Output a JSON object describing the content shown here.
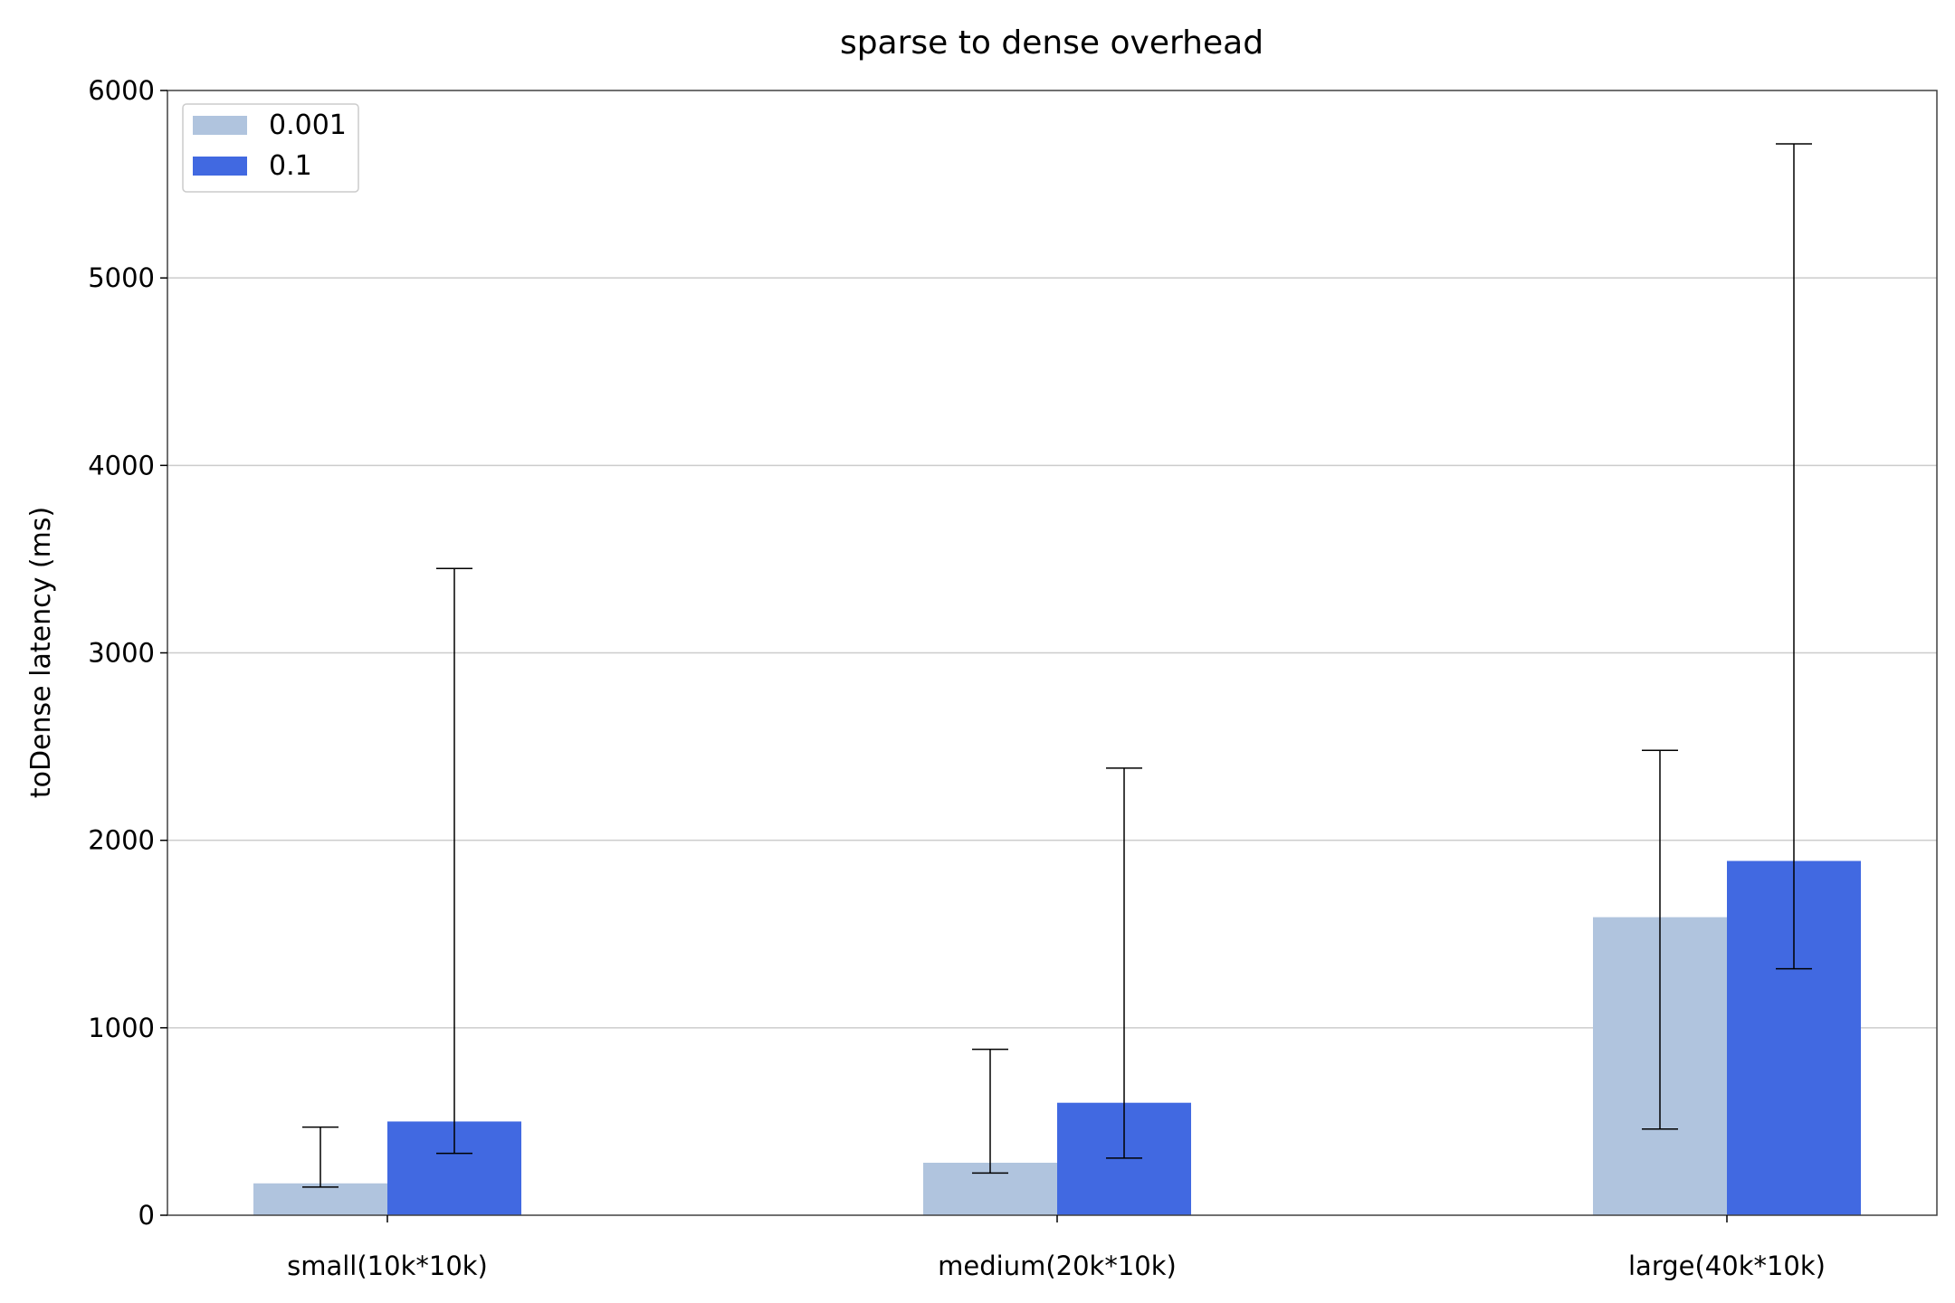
{
  "chart_data": {
    "type": "bar",
    "title": "sparse to dense overhead",
    "xlabel": "",
    "ylabel": "toDense latency (ms)",
    "categories": [
      "small(10k*10k)",
      "medium(20k*10k)",
      "large(40k*10k)"
    ],
    "series": [
      {
        "name": "0.001",
        "color": "#b0c4de",
        "values": [
          170,
          280,
          1590
        ],
        "error_low": [
          150,
          225,
          460
        ],
        "error_high": [
          470,
          885,
          2480
        ]
      },
      {
        "name": "0.1",
        "color": "#4169e1",
        "values": [
          500,
          600,
          1890
        ],
        "error_low": [
          330,
          305,
          1315
        ],
        "error_high": [
          3450,
          2385,
          5715
        ]
      }
    ],
    "ylim": [
      0,
      6000
    ],
    "yticks": [
      0,
      1000,
      2000,
      3000,
      4000,
      5000,
      6000
    ],
    "grid": "horizontal",
    "legend_position": "top-left"
  }
}
